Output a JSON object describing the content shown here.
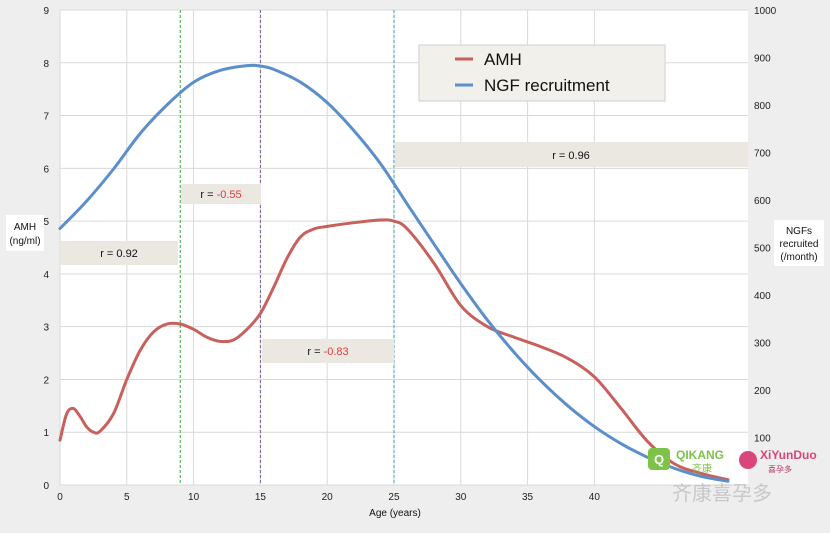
{
  "colors": {
    "amh": "#c8605c",
    "ngf": "#5b8fcc",
    "plot_bg": "#ffffff",
    "grid": "#d9d9d9",
    "vline_green": "#3aa64a",
    "vline_purple": "#7a5aa8",
    "vline_teal": "#3b9fb8",
    "rbox": "#ebe8e2",
    "negative_r": "#e23b3b"
  },
  "axes": {
    "x_title": "Age (years)",
    "x_ticks": [
      "0",
      "5",
      "10",
      "15",
      "20",
      "25",
      "30",
      "35",
      "40"
    ],
    "y_left_title_line1": "AMH",
    "y_left_title_line2": "(ng/ml)",
    "y_left_ticks": [
      "0",
      "1",
      "2",
      "3",
      "4",
      "5",
      "6",
      "7",
      "8",
      "9"
    ],
    "y_right_title_line1": "NGFs",
    "y_right_title_line2": "recruited",
    "y_right_title_line3": "(/month)",
    "y_right_ticks": [
      "100",
      "200",
      "300",
      "400",
      "500",
      "600",
      "700",
      "800",
      "900",
      "1000"
    ]
  },
  "legend": {
    "items": [
      {
        "label": "AMH",
        "color_key": "amh"
      },
      {
        "label": "NGF recruitment",
        "color_key": "ngf"
      }
    ]
  },
  "annotations": {
    "r1_prefix": "r = ",
    "r1_value": "0.92",
    "r2_prefix": "r = ",
    "r2_value": "-0.55",
    "r3_prefix": "r = ",
    "r3_value": "-0.83",
    "r4_prefix": "r = ",
    "r4_value": "0.96"
  },
  "watermark": {
    "brand1_latin": "QIKANG",
    "brand1_cn": "齐康",
    "brand2_latin": "XiYunDuo",
    "brand2_cn": "喜孕多",
    "footer_cn": "齐康喜孕多"
  },
  "chart_data": {
    "type": "line",
    "xlabel": "Age (years)",
    "xlim": [
      0,
      51.5
    ],
    "y_left_label": "AMH (ng/ml)",
    "ylim_left": [
      0,
      9
    ],
    "y_right_label": "NGFs recruited (/month)",
    "ylim_right": [
      0,
      1000
    ],
    "vertical_lines": [
      9,
      15,
      25
    ],
    "grid": true,
    "legend_position": "top-center",
    "series": [
      {
        "name": "AMH",
        "axis": "left",
        "color": "#c8605c",
        "x": [
          0,
          0.5,
          1,
          1.5,
          2,
          2.5,
          3,
          4,
          5,
          6,
          7,
          8,
          9,
          10,
          11,
          12,
          13,
          14,
          15,
          16,
          17,
          18,
          19,
          20,
          22,
          24,
          25,
          26,
          28,
          30,
          32,
          34,
          36,
          38,
          40,
          42,
          44,
          46,
          48,
          50
        ],
        "y": [
          0.85,
          1.35,
          1.45,
          1.3,
          1.1,
          1.0,
          1.02,
          1.35,
          2.0,
          2.55,
          2.9,
          3.05,
          3.05,
          2.95,
          2.8,
          2.72,
          2.75,
          2.95,
          3.25,
          3.75,
          4.3,
          4.7,
          4.85,
          4.9,
          4.97,
          5.02,
          5.0,
          4.85,
          4.2,
          3.4,
          3.0,
          2.8,
          2.62,
          2.4,
          2.05,
          1.45,
          0.82,
          0.4,
          0.22,
          0.1
        ]
      },
      {
        "name": "NGF recruitment",
        "axis": "right",
        "color": "#5b8fcc",
        "x": [
          0,
          2,
          4,
          6,
          8,
          10,
          12,
          14,
          15,
          16,
          18,
          20,
          22,
          24,
          26,
          28,
          30,
          32,
          34,
          36,
          38,
          40,
          42,
          44,
          46,
          48,
          50
        ],
        "y": [
          540,
          598,
          665,
          740,
          800,
          848,
          873,
          883,
          882,
          875,
          848,
          805,
          746,
          676,
          591,
          507,
          424,
          347,
          279,
          219,
          167,
          123,
          87,
          58,
          35,
          18,
          8
        ]
      }
    ]
  }
}
